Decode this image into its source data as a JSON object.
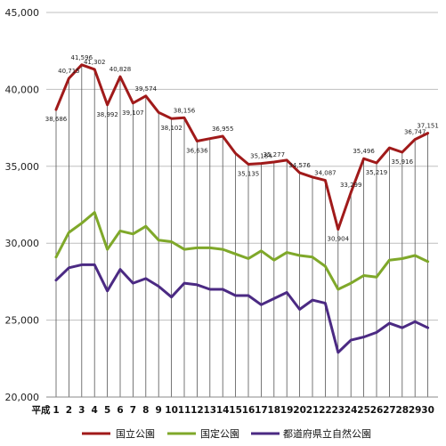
{
  "chart_data": {
    "type": "line",
    "x_prefix": "平成",
    "categories": [
      "1",
      "2",
      "3",
      "4",
      "5",
      "6",
      "7",
      "8",
      "9",
      "10",
      "11",
      "12",
      "13",
      "14",
      "15",
      "16",
      "17",
      "18",
      "19",
      "20",
      "21",
      "22",
      "23",
      "24",
      "25",
      "26",
      "27",
      "28",
      "29",
      "30"
    ],
    "ylim": [
      20000,
      45000
    ],
    "yticks": [
      20000,
      25000,
      30000,
      35000,
      40000,
      45000
    ],
    "ytick_labels": [
      "20,000",
      "25,000",
      "30,000",
      "35,000",
      "40,000",
      "45,000"
    ],
    "grid": "vertical drop lines at each category",
    "legend_position": "bottom",
    "series": [
      {
        "name": "国立公園",
        "color": "#a01a1a",
        "values": [
          38686,
          40715,
          41596,
          41302,
          38992,
          40828,
          39107,
          39574,
          38500,
          38102,
          38156,
          36636,
          36800,
          36955,
          35836,
          35135,
          35184,
          35277,
          35400,
          34576,
          34300,
          34087,
          30904,
          33299,
          35496,
          35219,
          36200,
          35916,
          36747,
          37151
        ],
        "labels": [
          "38,686",
          "40,715",
          "41,596",
          "41,302",
          "38,992",
          "40,828",
          "39,107",
          "39,574",
          "",
          "38,102",
          "38,156",
          "36,636",
          "",
          "36,955",
          "",
          "35,135",
          "35,184",
          "35,277",
          "",
          "34,576",
          "",
          "34,087",
          "30,904",
          "33,299",
          "35,496",
          "35,219",
          "",
          "35,916",
          "36,747",
          "37,151"
        ]
      },
      {
        "name": "国定公園",
        "color": "#7fa82a",
        "values": [
          29100,
          30700,
          31300,
          32000,
          29600,
          30800,
          30600,
          31100,
          30200,
          30100,
          29600,
          29700,
          29700,
          29600,
          29300,
          29000,
          29500,
          28900,
          29400,
          29200,
          29100,
          28500,
          27000,
          27400,
          27900,
          27800,
          28900,
          29000,
          29200,
          28800
        ],
        "labels": []
      },
      {
        "name": "都道府県立自然公園",
        "color": "#4b2a83",
        "values": [
          27600,
          28400,
          28600,
          28600,
          26900,
          28300,
          27400,
          27700,
          27200,
          26500,
          27400,
          27300,
          27000,
          27000,
          26600,
          26600,
          26000,
          26400,
          26800,
          25700,
          26300,
          26100,
          22900,
          23700,
          23900,
          24200,
          24800,
          24500,
          24900,
          24500
        ],
        "labels": []
      }
    ]
  }
}
